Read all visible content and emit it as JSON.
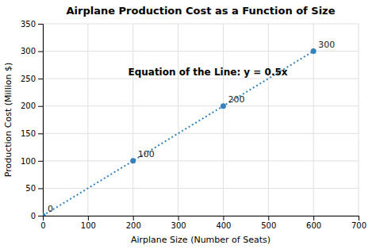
{
  "chart_data": {
    "type": "line",
    "title": "Airplane Production Cost as a Function of Size",
    "xlabel": "Airplane Size (Number of Seats)",
    "ylabel": "Production Cost (Million $)",
    "x": [
      0,
      200,
      400,
      600
    ],
    "values": [
      0,
      100,
      200,
      300
    ],
    "color": "#3182bd",
    "marker": "circle",
    "line_style": "dotted",
    "data_labels": true,
    "annotation": "Equation of the Line: y = 0.5x",
    "xlim": [
      0,
      700
    ],
    "ylim": [
      0,
      350
    ],
    "xticks": [
      0,
      100,
      200,
      300,
      400,
      500,
      600,
      700
    ],
    "yticks": [
      0,
      50,
      100,
      150,
      200,
      250,
      300,
      350
    ],
    "grid": true
  }
}
